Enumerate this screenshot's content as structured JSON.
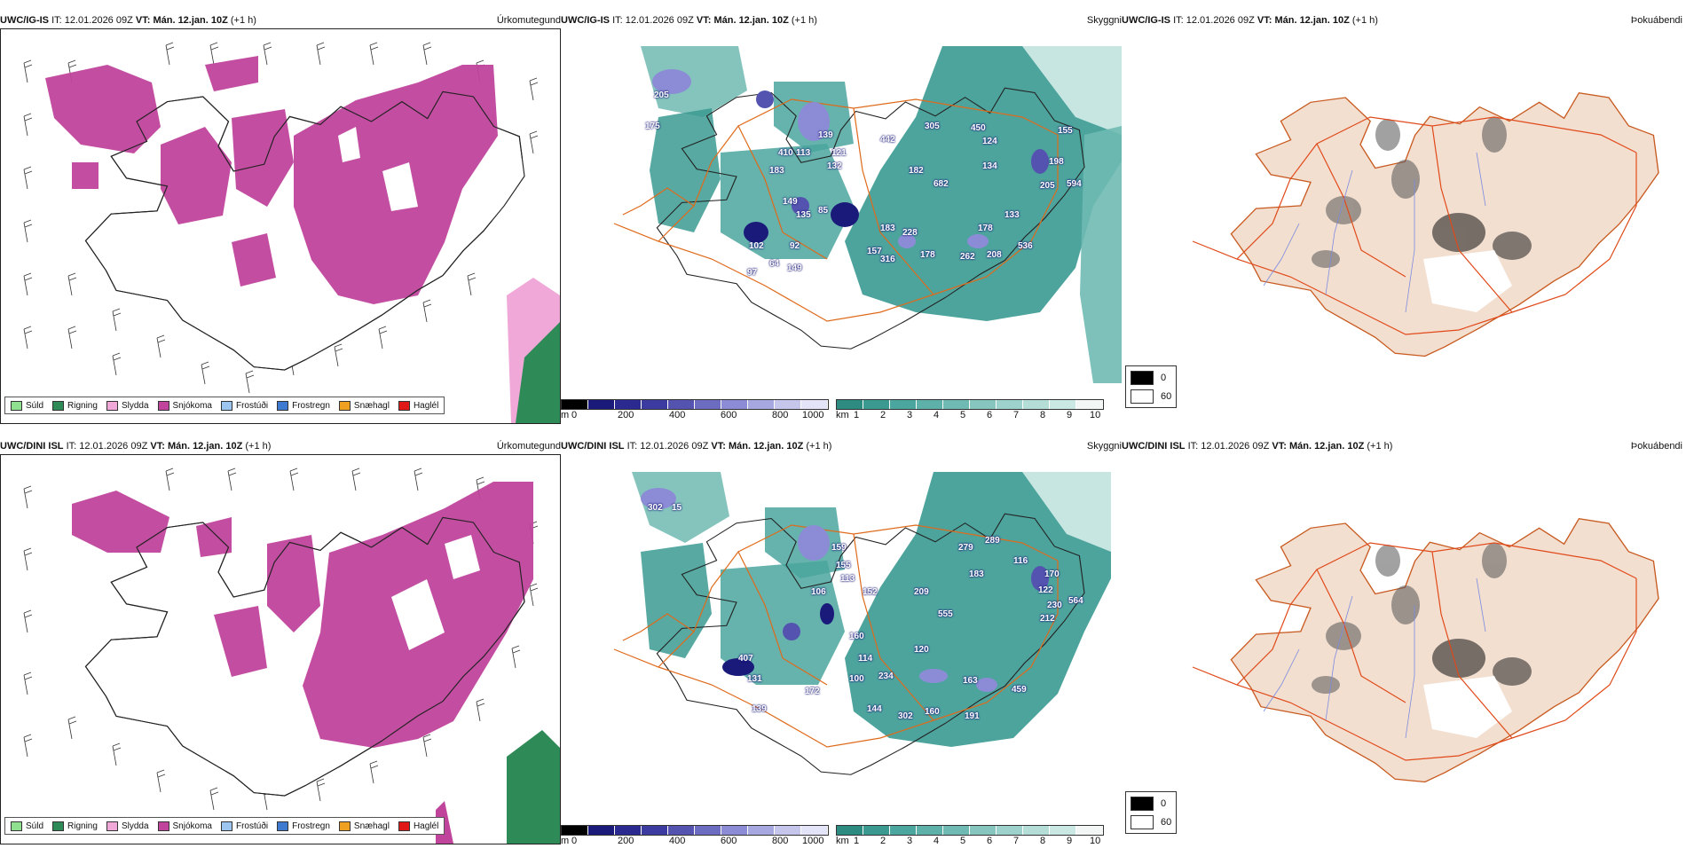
{
  "panels": [
    {
      "model": "UWC/IG-IS",
      "it_label": "IT:",
      "it_value": "12.01.2026 09Z",
      "vt_label": "VT:",
      "vt_value": "Mán. 12.jan. 10Z",
      "step": "(+1 h)",
      "title": "Úrkomutegund"
    },
    {
      "model": "UWC/IG-IS",
      "it_label": "IT:",
      "it_value": "12.01.2026 09Z",
      "vt_label": "VT:",
      "vt_value": "Mán. 12.jan. 10Z",
      "step": "(+1 h)",
      "title": "Skyggni"
    },
    {
      "model": "UWC/IG-IS",
      "it_label": "IT:",
      "it_value": "12.01.2026 09Z",
      "vt_label": "VT:",
      "vt_value": "Mán. 12.jan. 10Z",
      "step": "(+1 h)",
      "title": "Þokuábendi"
    },
    {
      "model": "UWC/DINI ISL",
      "it_label": "IT:",
      "it_value": "12.01.2026 09Z",
      "vt_label": "VT:",
      "vt_value": "Mán. 12.jan. 10Z",
      "step": "(+1 h)",
      "title": "Úrkomutegund"
    },
    {
      "model": "UWC/DINI ISL",
      "it_label": "IT:",
      "it_value": "12.01.2026 09Z",
      "vt_label": "VT:",
      "vt_value": "Mán. 12.jan. 10Z",
      "step": "(+1 h)",
      "title": "Skyggni"
    },
    {
      "model": "UWC/DINI ISL",
      "it_label": "IT:",
      "it_value": "12.01.2026 09Z",
      "vt_label": "VT:",
      "vt_value": "Mán. 12.jan. 10Z",
      "step": "(+1 h)",
      "title": "Þokuábendi"
    }
  ],
  "precip_legend": [
    {
      "label": "Súld",
      "color": "#8fe08f"
    },
    {
      "label": "Rigning",
      "color": "#2e8b57"
    },
    {
      "label": "Slydda",
      "color": "#f0a8d8"
    },
    {
      "label": "Snjókoma",
      "color": "#c0449c"
    },
    {
      "label": "Frostúði",
      "color": "#9cc6f0"
    },
    {
      "label": "Frostregn",
      "color": "#3d7ad0"
    },
    {
      "label": "Snæhagl",
      "color": "#f0a020"
    },
    {
      "label": "Haglél",
      "color": "#e01818"
    }
  ],
  "cloudbase_scale": {
    "unit": "m",
    "ticks": [
      "0",
      "200",
      "400",
      "600",
      "800",
      "1000"
    ]
  },
  "visibility_scale": {
    "unit": "km",
    "ticks": [
      "1",
      "2",
      "3",
      "4",
      "5",
      "6",
      "7",
      "8",
      "9",
      "10"
    ]
  },
  "fog_legend": [
    {
      "label": "0",
      "color": "#000000"
    },
    {
      "label": "60",
      "color": "#ffffff"
    }
  ],
  "cloudbase_labels_top": [
    "205",
    "175",
    "410",
    "183",
    "113",
    "139",
    "121",
    "132",
    "442",
    "305",
    "450",
    "124",
    "182",
    "682",
    "134",
    "198",
    "205",
    "594",
    "155",
    "149",
    "85",
    "135",
    "183",
    "228",
    "178",
    "102",
    "92",
    "157",
    "316",
    "178",
    "262",
    "208",
    "536",
    "64",
    "97",
    "149",
    "133"
  ],
  "cloudbase_labels_bottom": [
    "302",
    "15",
    "279",
    "289",
    "116",
    "159",
    "155",
    "113",
    "183",
    "170",
    "122",
    "106",
    "152",
    "209",
    "555",
    "230",
    "212",
    "564",
    "160",
    "407",
    "131",
    "100",
    "114",
    "120",
    "234",
    "163",
    "459",
    "172",
    "144",
    "302",
    "160",
    "191",
    "139"
  ],
  "colors": {
    "snow": "#c0449c",
    "rain": "#2e8b57",
    "sleet": "#f0a8d8",
    "visibility": "#2e8b82",
    "roads": "#e06a1a",
    "fog_land": "#f3dfd0",
    "cloud_dark": "#1a1a7a",
    "cloud_light": "#8c8cd6"
  }
}
